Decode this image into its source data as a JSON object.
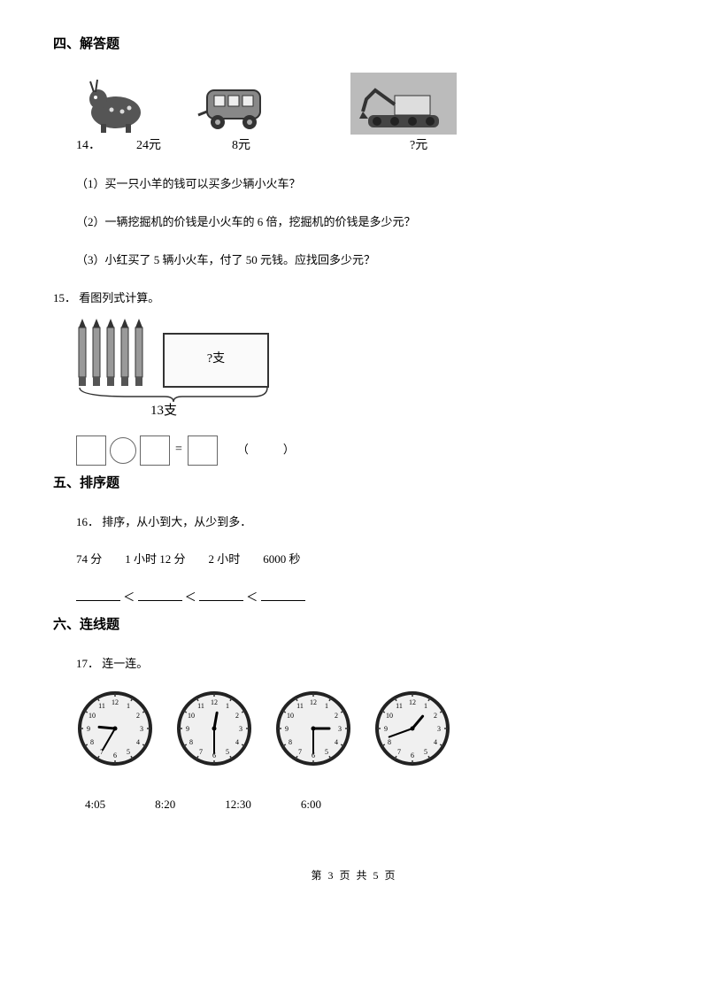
{
  "section4": {
    "title": "四、解答题",
    "q14": {
      "num": "14．",
      "price1": "24元",
      "price2": "8元",
      "price3": "?元",
      "sub1": "（1）买一只小羊的钱可以买多少辆小火车？",
      "sub2": "（2）一辆挖掘机的价钱是小火车的 6 倍，挖掘机的价钱是多少元？",
      "sub3": "（3）小红买了 5 辆小火车，付了 50 元钱。应找回多少元？"
    },
    "q15": {
      "num": "15． 看图列式计算。",
      "box_label": "?支",
      "brace_total": "13支",
      "paren": "（　　　）"
    }
  },
  "section5": {
    "title": "五、排序题",
    "q16": {
      "num": "16． 排序，从小到大，从少到多．",
      "items": "74 分　　1 小时 12 分　　2 小时　　6000 秒",
      "lt": "＜"
    }
  },
  "section6": {
    "title": "六、连线题",
    "q17": {
      "num": "17． 连一连。",
      "times": [
        "4:05",
        "8:20",
        "12:30",
        "6:00"
      ],
      "clocks": [
        {
          "hour_angle": 275,
          "min_angle": 210
        },
        {
          "hour_angle": 10,
          "min_angle": 180
        },
        {
          "hour_angle": 90,
          "min_angle": 180
        },
        {
          "hour_angle": 40,
          "min_angle": 250
        }
      ],
      "clock_face_bg": "#f0f0f0",
      "clock_border": "#222",
      "hand_color": "#000"
    }
  },
  "footer": {
    "text": "第 3 页 共 5 页"
  }
}
